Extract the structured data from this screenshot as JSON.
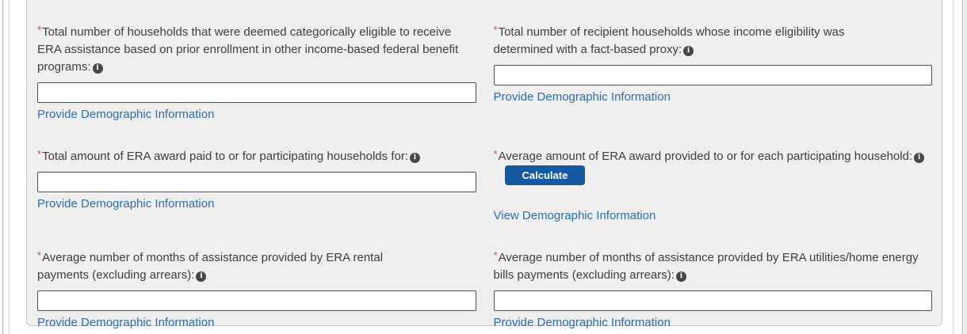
{
  "symbols": {
    "required": "*",
    "info_glyph": "i"
  },
  "theme": {
    "panel_bg": "#efefef",
    "label_color": "#3d3d42",
    "link_color": "#2a6ebb",
    "required_color": "#c64a5a",
    "info_icon_bg": "#474747",
    "button_bg": "#1459a3",
    "input_border": "#4d4d4d"
  },
  "form": {
    "fields": [
      {
        "label": "Total number of households that were deemed categorically eligible to receive ERA assistance based on prior enrollment in other income-based federal benefit programs:",
        "value": "",
        "link": "Provide Demographic Information"
      },
      {
        "label": "Total number of recipient households whose income eligibility was determined with a fact-based proxy:",
        "value": "",
        "link": "Provide Demographic Information"
      },
      {
        "label": "Total amount of ERA award paid to or for participating households for:",
        "value": "",
        "link": "Provide Demographic Information"
      },
      {
        "label": "Average amount of ERA award provided to or for each participating household:",
        "button_label": "Calculate",
        "link": "View Demographic Information"
      },
      {
        "label": "Average number of months of assistance provided by ERA rental payments (excluding arrears):",
        "value": "",
        "link": "Provide Demographic Information"
      },
      {
        "label": "Average number of months of assistance provided by ERA utilities/home energy bills payments (excluding arrears):",
        "value": "",
        "link": "Provide Demographic Information"
      }
    ]
  }
}
